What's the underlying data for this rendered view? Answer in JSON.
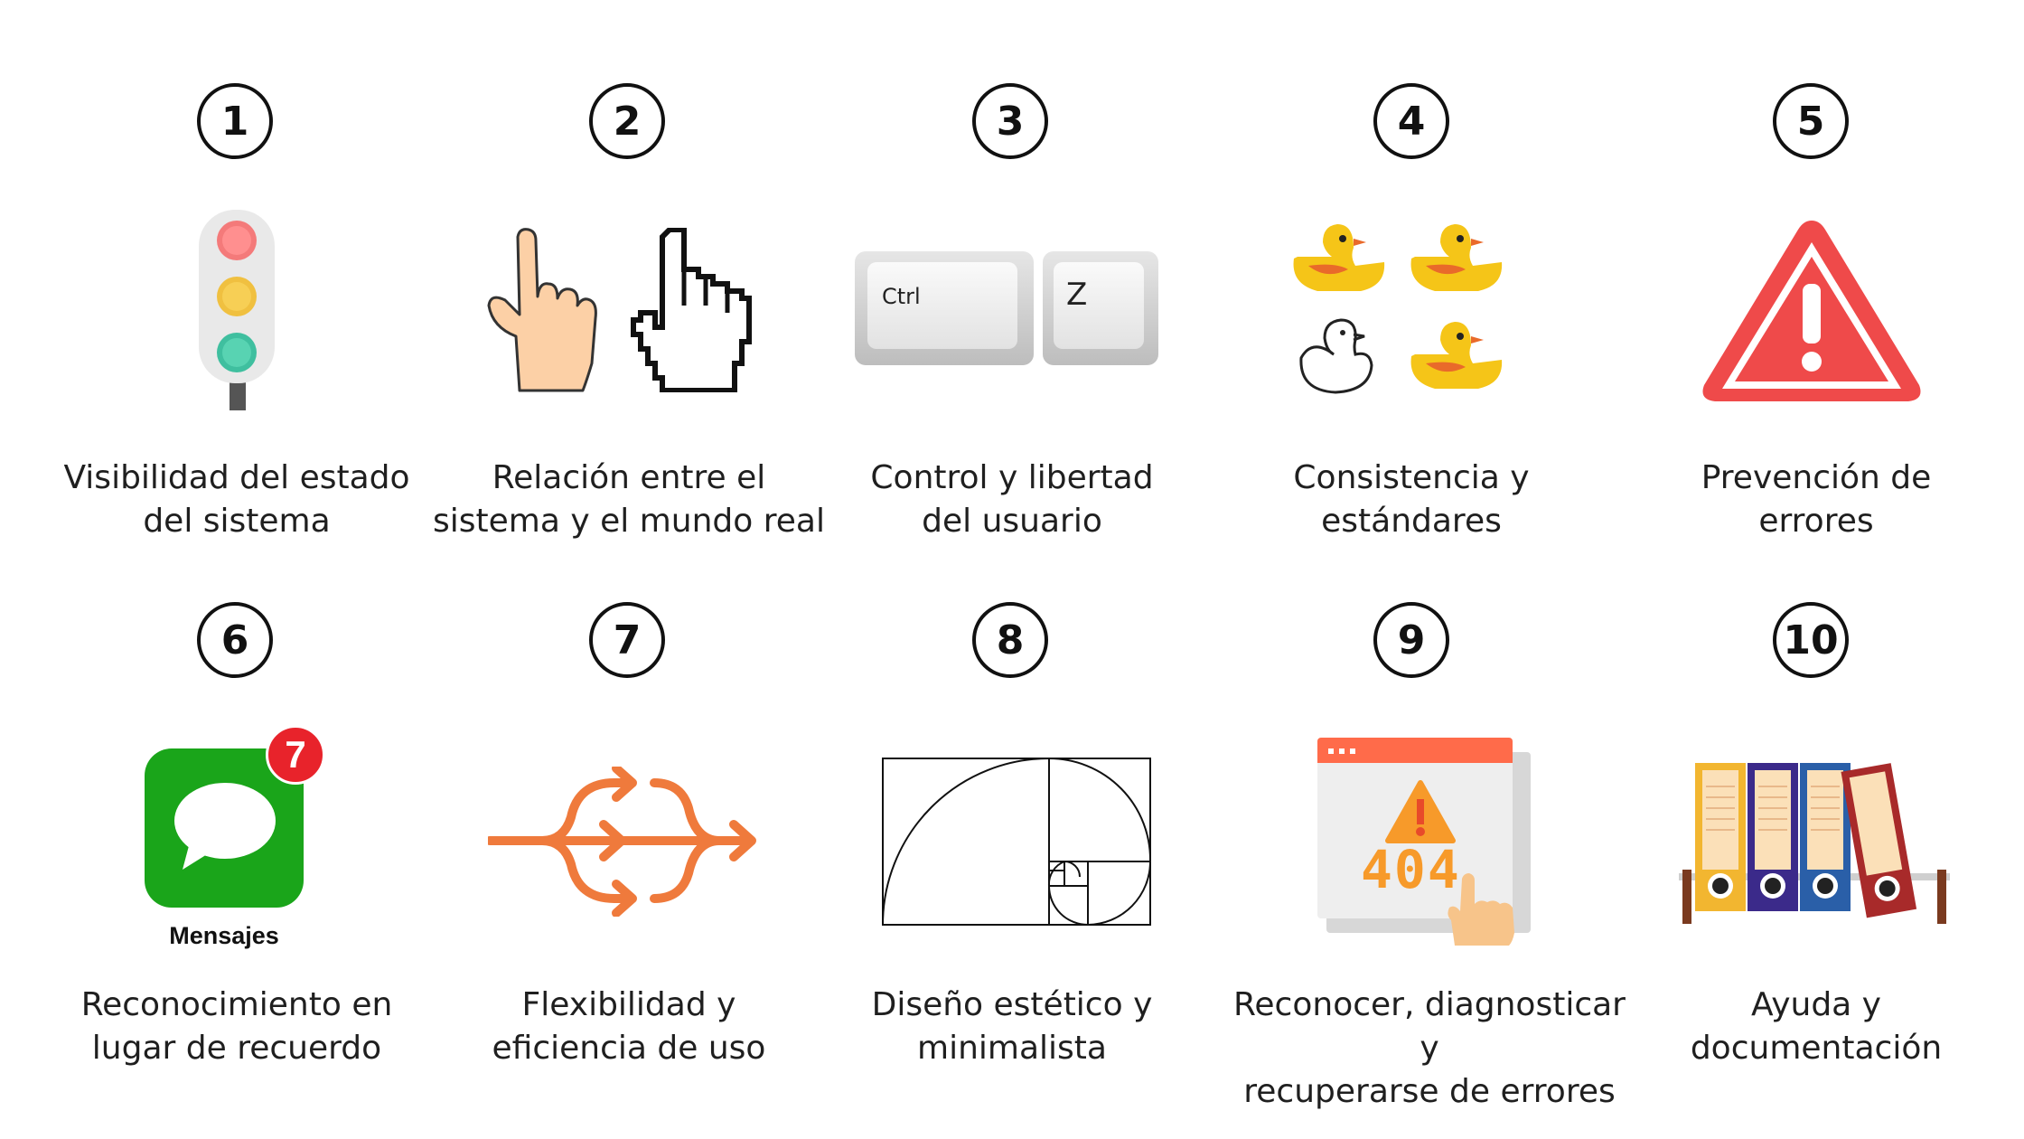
{
  "heuristics": [
    {
      "number": "1",
      "line1": "Visibilidad del estado",
      "line2": "del sistema",
      "icon": "traffic-light-icon"
    },
    {
      "number": "2",
      "line1": "Relación entre el",
      "line2": "sistema y el mundo real",
      "icon": "pointing-hands-icon"
    },
    {
      "number": "3",
      "line1": "Control y libertad",
      "line2": "del usuario",
      "icon": "ctrl-z-keys-icon"
    },
    {
      "number": "4",
      "line1": "Consistencia y",
      "line2": "estándares",
      "icon": "ducks-icon"
    },
    {
      "number": "5",
      "line1": "Prevención de",
      "line2": "errores",
      "icon": "warning-triangle-icon"
    },
    {
      "number": "6",
      "line1": "Reconocimiento en",
      "line2": "lugar de recuerdo",
      "icon": "messages-app-icon"
    },
    {
      "number": "7",
      "line1": "Flexibilidad y",
      "line2": "eficiencia de uso",
      "icon": "merging-arrows-icon"
    },
    {
      "number": "8",
      "line1": "Diseño estético y",
      "line2": "minimalista",
      "icon": "golden-spiral-icon"
    },
    {
      "number": "9",
      "line1": "Reconocer, diagnosticar y",
      "line2": "recuperarse de errores",
      "icon": "error-404-icon"
    },
    {
      "number": "10",
      "line1": "Ayuda y",
      "line2": "documentación",
      "icon": "binders-icon"
    }
  ],
  "keys": {
    "ctrl": "Ctrl",
    "z": "Z"
  },
  "messages": {
    "badge": "7",
    "app_name": "Mensajes"
  },
  "error_page": {
    "code": "404"
  },
  "colors": {
    "warning_red": "#ef4a4a",
    "arrow_orange": "#ef7a3c",
    "messages_green": "#1aa51a",
    "duck_yellow": "#f5c518"
  }
}
